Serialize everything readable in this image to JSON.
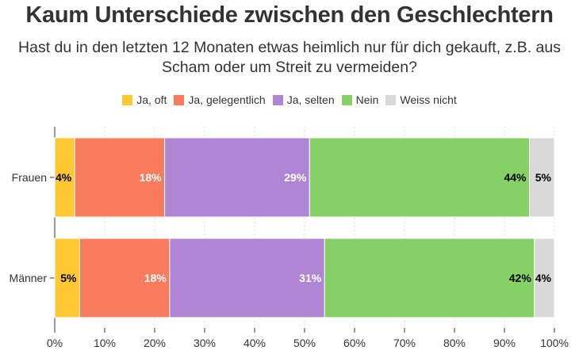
{
  "title": "Kaum Unterschiede zwischen den Geschlechtern",
  "subtitle_line1": "Hast du in den letzten 12 Monaten etwas heimlich nur für dich gekauft, z.B. aus",
  "subtitle_line2": "Scham oder um Streit zu vermeiden?",
  "colors": {
    "ja_oft": "#FFC732",
    "ja_gelegentlich": "#F77B5C",
    "ja_selten": "#B085D6",
    "nein": "#85D166",
    "weiss_nicht": "#D9D9D9"
  },
  "chart_data": {
    "type": "bar",
    "orientation": "horizontal",
    "stacked": true,
    "categories": [
      "Frauen",
      "Männer"
    ],
    "series": [
      {
        "name": "Ja, oft",
        "values": [
          4,
          5
        ],
        "labels": [
          "4%",
          "5%"
        ],
        "color": "#FFC732",
        "label_color": "#000000"
      },
      {
        "name": "Ja, gelegentlich",
        "values": [
          18,
          18
        ],
        "labels": [
          "18%",
          "18%"
        ],
        "color": "#F77B5C",
        "label_color": "#ffffff"
      },
      {
        "name": "Ja, selten",
        "values": [
          29,
          31
        ],
        "labels": [
          "29%",
          "31%"
        ],
        "color": "#B085D6",
        "label_color": "#ffffff"
      },
      {
        "name": "Nein",
        "values": [
          44,
          42
        ],
        "labels": [
          "44%",
          "42%"
        ],
        "color": "#85D166",
        "label_color": "#000000"
      },
      {
        "name": "Weiss nicht",
        "values": [
          5,
          4
        ],
        "labels": [
          "5%",
          "4%"
        ],
        "color": "#D9D9D9",
        "label_color": "#000000"
      }
    ],
    "xlim": [
      0,
      100
    ],
    "x_ticks": [
      "0%",
      "10%",
      "20%",
      "30%",
      "40%",
      "50%",
      "60%",
      "70%",
      "80%",
      "90%",
      "100%"
    ],
    "grid": true,
    "legend_position": "top-center"
  }
}
